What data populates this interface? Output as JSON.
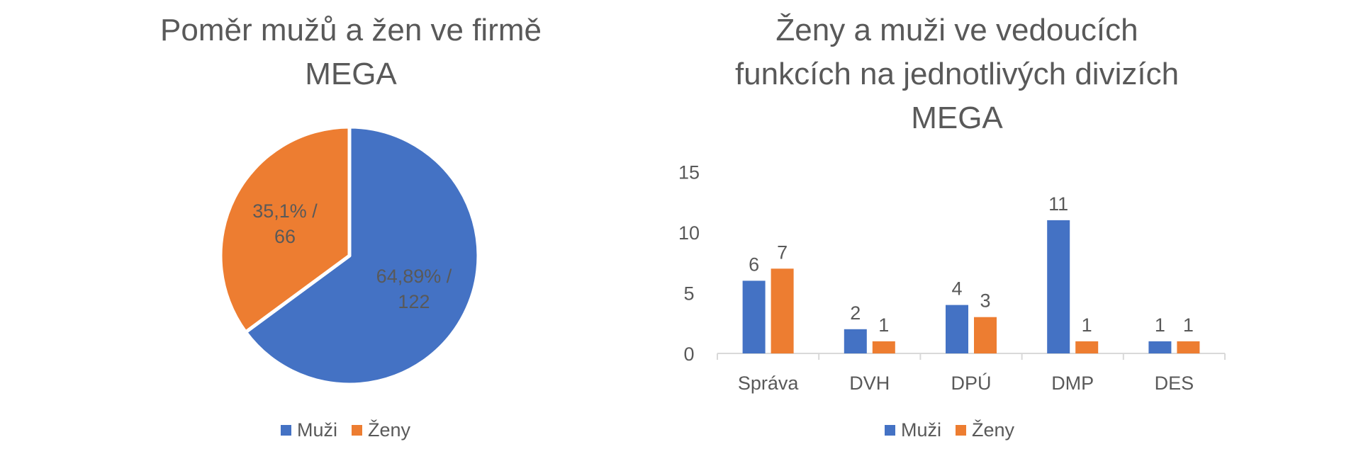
{
  "colors": {
    "muzi": "#4472C4",
    "zeny": "#ED7D31",
    "text": "#595959",
    "axis": "#D9D9D9"
  },
  "chart_data": [
    {
      "type": "pie",
      "title": "Poměr mužů a žen ve firmě MEGA",
      "legend_position": "bottom",
      "slices": [
        {
          "name": "Muži",
          "value": 122,
          "percent_label": "64,89% /",
          "count_label": "122"
        },
        {
          "name": "Ženy",
          "value": 66,
          "percent_label": "35,1% /",
          "count_label": "66"
        }
      ]
    },
    {
      "type": "bar",
      "title": "Ženy a muži ve vedoucích funkcích na jednotlivých divizích MEGA",
      "categories": [
        "Správa",
        "DVH",
        "DPÚ",
        "DMP",
        "DES"
      ],
      "series": [
        {
          "name": "Muži",
          "values": [
            6,
            2,
            4,
            11,
            1
          ]
        },
        {
          "name": "Ženy",
          "values": [
            7,
            1,
            3,
            1,
            1
          ]
        }
      ],
      "ylim": [
        0,
        15
      ],
      "yticks": [
        "0",
        "5",
        "10",
        "15"
      ],
      "grid": false,
      "legend_position": "bottom",
      "xlabel": "",
      "ylabel": ""
    }
  ]
}
